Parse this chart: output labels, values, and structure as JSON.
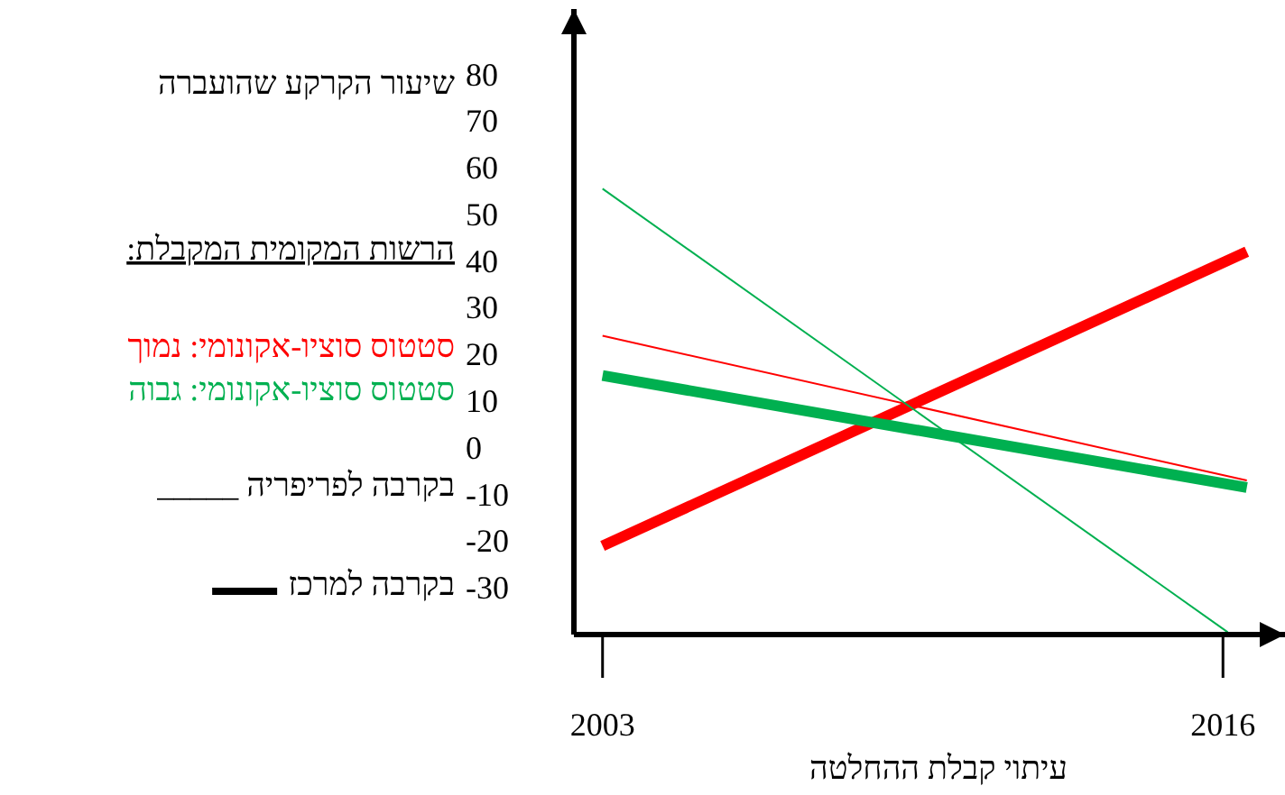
{
  "chart_data": {
    "type": "line",
    "ylabel": "שיעור הקרקע שהועברה",
    "xlabel": "עיתוי קבלת ההחלטה",
    "legend_title": "הרשות המקומית המקבלת:",
    "annotations": [
      "סטטוס סוציו-אקונומי: נמוך",
      "סטטוס סוציו-אקונומי: גבוה",
      "בקרבה לפריפריה _____",
      "בקרבה למרכז"
    ],
    "xlim": [
      2002.4,
      2017.3
    ],
    "xticks": [
      2003,
      2016
    ],
    "ylim": [
      -40,
      94
    ],
    "yticks": [
      80,
      70,
      60,
      50,
      40,
      30,
      20,
      10,
      0,
      -10,
      -20,
      -30
    ],
    "grid": false,
    "line_style": "solid",
    "series": [
      {
        "color": "#ff0000",
        "x": [
          2003,
          2016.5
        ],
        "values": [
          -21,
          42
        ]
      },
      {
        "color": "#ff0000",
        "x": [
          2003,
          2016.5
        ],
        "values": [
          24,
          -7
        ]
      },
      {
        "color": "#00b050",
        "x": [
          2003,
          2016.5
        ],
        "values": [
          15.5,
          -8.5
        ]
      },
      {
        "color": "#00b050",
        "x": [
          2003,
          2016.1
        ],
        "values": [
          55.5,
          -39.5
        ]
      }
    ]
  }
}
